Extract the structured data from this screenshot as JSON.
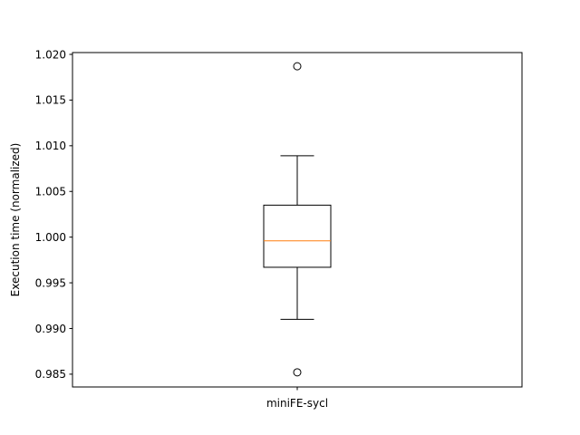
{
  "chart_data": {
    "type": "boxplot",
    "title": "",
    "xlabel": "",
    "ylabel": "Execution time (normalized)",
    "categories": [
      "miniFE-sycl"
    ],
    "ylim": [
      0.9836,
      1.0202
    ],
    "yticks": [
      0.985,
      0.99,
      0.995,
      1.0,
      1.005,
      1.01,
      1.015,
      1.02
    ],
    "ytick_labels": [
      "0.985",
      "0.990",
      "0.995",
      "1.000",
      "1.005",
      "1.010",
      "1.015",
      "1.020"
    ],
    "boxes": [
      {
        "category": "miniFE-sycl",
        "whisker_low": 0.991,
        "q1": 0.9967,
        "median": 0.9996,
        "q3": 1.0035,
        "whisker_high": 1.0089,
        "outliers": [
          1.0187,
          0.9852
        ]
      }
    ],
    "colors": {
      "box": "#000000",
      "median": "#ff7f0e",
      "axes": "#000000"
    },
    "grid": false
  }
}
